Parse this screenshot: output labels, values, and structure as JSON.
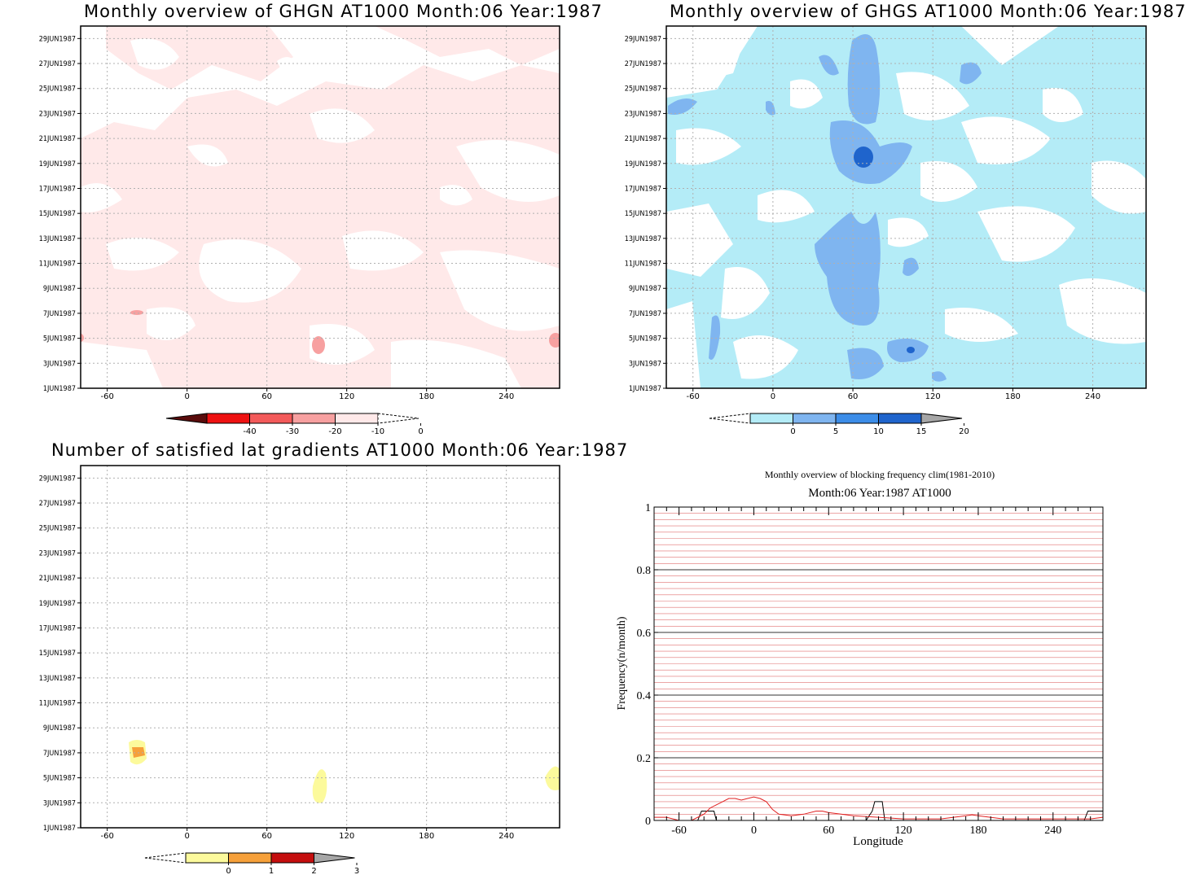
{
  "panels": [
    {
      "id": "ghgn",
      "title": "Monthly overview of GHGN AT1000 Month:06 Year:1987",
      "type": "heatmap",
      "fill_color": "#ffe9e9",
      "y_ticks": [
        "1JUN1987",
        "3JUN1987",
        "5JUN1987",
        "7JUN1987",
        "9JUN1987",
        "11JUN1987",
        "13JUN1987",
        "15JUN1987",
        "17JUN1987",
        "19JUN1987",
        "21JUN1987",
        "23JUN1987",
        "25JUN1987",
        "27JUN1987",
        "29JUN1987"
      ],
      "x_ticks": [
        "-60",
        "0",
        "60",
        "120",
        "180",
        "240"
      ],
      "colorbar": {
        "labels": [
          "-40",
          "-30",
          "-20",
          "-10",
          "0"
        ],
        "colors": [
          "#5a0c0c",
          "#ee1111",
          "#f35a5a",
          "#f7a0a0",
          "#ffe9e9",
          "#ffffff"
        ]
      }
    },
    {
      "id": "ghgs",
      "title": "Monthly overview of GHGS AT1000 Month:06 Year:1987",
      "type": "heatmap",
      "fill_color": "#b4ecf7",
      "y_ticks": [
        "1JUN1987",
        "3JUN1987",
        "5JUN1987",
        "7JUN1987",
        "9JUN1987",
        "11JUN1987",
        "13JUN1987",
        "15JUN1987",
        "17JUN1987",
        "19JUN1987",
        "21JUN1987",
        "23JUN1987",
        "25JUN1987",
        "27JUN1987",
        "29JUN1987"
      ],
      "x_ticks": [
        "-60",
        "0",
        "60",
        "120",
        "180",
        "240"
      ],
      "colorbar": {
        "labels": [
          "0",
          "5",
          "10",
          "15",
          "20"
        ],
        "colors": [
          "#ffffff",
          "#b4ecf7",
          "#7fb5f0",
          "#3c8de8",
          "#1f64cc",
          "#a6a6a6"
        ]
      }
    },
    {
      "id": "gradients",
      "title": "Number of satisfied lat gradients AT1000 Month:06 Year:1987",
      "type": "heatmap",
      "fill_color": "#fcfa9c",
      "y_ticks": [
        "1JUN1987",
        "3JUN1987",
        "5JUN1987",
        "7JUN1987",
        "9JUN1987",
        "11JUN1987",
        "13JUN1987",
        "15JUN1987",
        "17JUN1987",
        "19JUN1987",
        "21JUN1987",
        "23JUN1987",
        "25JUN1987",
        "27JUN1987",
        "29JUN1987"
      ],
      "x_ticks": [
        "-60",
        "0",
        "60",
        "120",
        "180",
        "240"
      ],
      "colorbar": {
        "labels": [
          "0",
          "1",
          "2",
          "3"
        ],
        "colors": [
          "#ffffff",
          "#fcfa9c",
          "#f6a03a",
          "#c40e0e",
          "#a6a6a6"
        ]
      }
    }
  ],
  "freq_panel": {
    "title": "Monthly overview of blocking frequency clim(1981-2010)",
    "subtitle": "Month:06 Year:1987  AT1000",
    "xlabel": "Longitude",
    "ylabel": "Frequency(n/month)",
    "x_ticks": [
      "-60",
      "0",
      "60",
      "120",
      "180",
      "240"
    ],
    "y_ticks": [
      "0",
      "0.2",
      "0.4",
      "0.6",
      "0.8",
      "1"
    ]
  },
  "chart_data": [
    {
      "type": "heatmap",
      "title": "Monthly overview of GHGN AT1000 Month:06 Year:1987",
      "xlim": [
        -80,
        280
      ],
      "ylim": [
        "1JUN1987",
        "30JUN1987"
      ],
      "levels": [
        -40,
        -30,
        -20,
        -10,
        0
      ],
      "grid": true
    },
    {
      "type": "heatmap",
      "title": "Monthly overview of GHGS AT1000 Month:06 Year:1987",
      "xlim": [
        -80,
        280
      ],
      "ylim": [
        "1JUN1987",
        "30JUN1987"
      ],
      "levels": [
        0,
        5,
        10,
        15,
        20
      ],
      "grid": true
    },
    {
      "type": "heatmap",
      "title": "Number of satisfied lat gradients AT1000 Month:06 Year:1987",
      "xlim": [
        -80,
        280
      ],
      "ylim": [
        "1JUN1987",
        "30JUN1987"
      ],
      "levels": [
        0,
        1,
        2,
        3
      ],
      "grid": true
    },
    {
      "type": "line",
      "title": "Monthly overview of blocking frequency clim(1981-2010)",
      "subtitle": "Month:06 Year:1987  AT1000",
      "xlabel": "Longitude",
      "ylabel": "Frequency(n/month)",
      "xlim": [
        -80,
        280
      ],
      "ylim": [
        0,
        1
      ],
      "series": [
        {
          "color": "#000000",
          "x": [
            -80,
            -50,
            -45,
            -42,
            -38,
            -35,
            -32,
            -30,
            -27,
            -20,
            0,
            20,
            40,
            60,
            80,
            90,
            95,
            97,
            99,
            101,
            103,
            105,
            110,
            150,
            200,
            250,
            265,
            268,
            275,
            280
          ],
          "y": [
            0,
            0,
            0,
            0.03,
            0.03,
            0.03,
            0.03,
            0,
            0,
            0,
            0,
            0,
            0,
            0,
            0,
            0,
            0.03,
            0.06,
            0.06,
            0.06,
            0.06,
            0,
            0,
            0,
            0,
            0,
            0,
            0.03,
            0.03,
            0.03
          ]
        },
        {
          "color": "#e02020",
          "x": [
            -80,
            -70,
            -60,
            -50,
            -40,
            -35,
            -30,
            -25,
            -20,
            -15,
            -10,
            -5,
            0,
            5,
            10,
            15,
            20,
            30,
            40,
            50,
            55,
            60,
            70,
            80,
            100,
            120,
            150,
            170,
            175,
            180,
            200,
            220,
            240,
            260,
            270,
            280
          ],
          "y": [
            0.01,
            0.01,
            0,
            0,
            0.02,
            0.04,
            0.05,
            0.06,
            0.07,
            0.07,
            0.065,
            0.07,
            0.075,
            0.07,
            0.06,
            0.035,
            0.02,
            0.015,
            0.02,
            0.03,
            0.03,
            0.025,
            0.02,
            0.015,
            0.01,
            0.005,
            0.005,
            0.015,
            0.018,
            0.015,
            0.005,
            0.005,
            0.005,
            0.005,
            0.005,
            0.01
          ]
        }
      ]
    }
  ]
}
